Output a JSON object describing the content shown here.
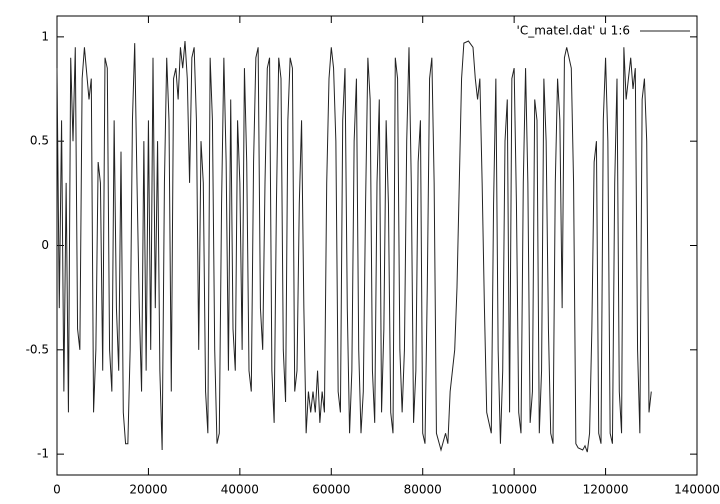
{
  "chart_data": {
    "type": "line",
    "x": [
      0,
      500,
      1000,
      1500,
      2000,
      2500,
      3000,
      3500,
      4000,
      4500,
      5000,
      5500,
      6000,
      7000,
      7500,
      8000,
      8500,
      9000,
      9500,
      10000,
      10500,
      11000,
      11500,
      12000,
      12500,
      13000,
      13500,
      14000,
      14500,
      15000,
      15500,
      16000,
      16500,
      17000,
      17500,
      18000,
      18500,
      19000,
      19500,
      20000,
      20500,
      21000,
      21500,
      22000,
      22500,
      23000,
      23500,
      24000,
      24500,
      25000,
      25500,
      26000,
      26500,
      27000,
      27500,
      28000,
      28500,
      29000,
      29500,
      30000,
      30500,
      31000,
      31500,
      32000,
      32500,
      33000,
      33500,
      34000,
      34500,
      35000,
      35500,
      36000,
      36500,
      37000,
      37500,
      38000,
      38500,
      39000,
      39500,
      40000,
      40500,
      41000,
      41500,
      42000,
      42500,
      43000,
      43500,
      44000,
      44500,
      45000,
      45500,
      46000,
      46500,
      47000,
      47500,
      48000,
      48500,
      49000,
      49500,
      50000,
      50500,
      51000,
      51500,
      52000,
      52500,
      53000,
      53500,
      54000,
      54500,
      55000,
      55500,
      56000,
      56500,
      57000,
      57500,
      58000,
      58500,
      59000,
      59500,
      60000,
      60500,
      61000,
      61500,
      62000,
      62500,
      63000,
      63500,
      64000,
      64500,
      65000,
      65500,
      66000,
      66500,
      67000,
      67500,
      68000,
      68500,
      69000,
      69500,
      70000,
      70500,
      71000,
      71500,
      72000,
      72500,
      73000,
      73500,
      74000,
      74500,
      75000,
      75500,
      76000,
      76500,
      77000,
      77500,
      78000,
      78500,
      79000,
      79500,
      80000,
      80500,
      81000,
      81500,
      82000,
      82500,
      83000,
      84000,
      85000,
      85500,
      86000,
      86500,
      87000,
      87500,
      88000,
      88500,
      89000,
      90000,
      91000,
      91500,
      92000,
      92500,
      93000,
      93500,
      94000,
      94500,
      95000,
      95500,
      96000,
      96500,
      97000,
      97500,
      98000,
      98500,
      99000,
      99500,
      100000,
      100500,
      101000,
      101500,
      102000,
      102500,
      103000,
      103500,
      104000,
      104500,
      105000,
      105500,
      106000,
      106500,
      107000,
      107500,
      108000,
      108500,
      109000,
      109500,
      110000,
      110500,
      111000,
      111500,
      112000,
      112500,
      113000,
      113500,
      114000,
      115000,
      115500,
      116000,
      116500,
      117000,
      117500,
      118000,
      118500,
      119000,
      119500,
      120000,
      120500,
      121000,
      121500,
      122000,
      122500,
      123000,
      123500,
      124000,
      124500,
      125000,
      125500,
      126000,
      126500,
      127000,
      127500,
      128000,
      128500,
      129000,
      129500,
      130000
    ],
    "series": [
      {
        "name": "'C_matel.dat' u 1:6",
        "color": "#222222",
        "values": [
          0.85,
          -0.3,
          0.6,
          -0.7,
          0.3,
          -0.8,
          0.9,
          0.5,
          0.95,
          -0.4,
          -0.5,
          0.8,
          0.95,
          0.7,
          0.8,
          -0.8,
          -0.5,
          0.4,
          0.3,
          -0.6,
          0.9,
          0.85,
          -0.5,
          -0.7,
          0.6,
          -0.3,
          -0.6,
          0.45,
          -0.8,
          -0.95,
          -0.95,
          -0.5,
          0.6,
          0.97,
          0.3,
          -0.3,
          -0.7,
          0.5,
          -0.6,
          0.6,
          -0.5,
          0.9,
          -0.3,
          0.5,
          -0.6,
          -0.98,
          0.3,
          0.9,
          0.6,
          -0.7,
          0.8,
          0.85,
          0.7,
          0.95,
          0.85,
          0.98,
          0.8,
          0.3,
          0.9,
          0.95,
          0.6,
          -0.5,
          0.5,
          0.3,
          -0.7,
          -0.9,
          0.9,
          0.6,
          -0.5,
          -0.95,
          -0.9,
          0.2,
          0.9,
          0.4,
          -0.6,
          0.7,
          -0.4,
          -0.6,
          0.6,
          0.3,
          -0.5,
          0.85,
          0.4,
          -0.6,
          -0.7,
          0.4,
          0.9,
          0.95,
          -0.3,
          -0.5,
          0.3,
          0.85,
          0.9,
          -0.6,
          -0.85,
          0.2,
          0.9,
          0.8,
          -0.5,
          -0.75,
          0.6,
          0.9,
          0.85,
          -0.7,
          -0.6,
          0.2,
          0.6,
          -0.3,
          -0.9,
          -0.7,
          -0.8,
          -0.7,
          -0.8,
          -0.6,
          -0.85,
          -0.7,
          -0.8,
          0.3,
          0.8,
          0.95,
          0.85,
          0.5,
          -0.7,
          -0.8,
          0.6,
          0.85,
          -0.3,
          -0.9,
          -0.6,
          0.5,
          0.8,
          -0.5,
          -0.9,
          -0.7,
          0.2,
          0.9,
          0.7,
          -0.6,
          -0.85,
          0.3,
          0.7,
          -0.8,
          -0.4,
          0.6,
          0.2,
          -0.8,
          -0.9,
          0.9,
          0.8,
          -0.5,
          -0.8,
          -0.5,
          0.5,
          0.95,
          0.3,
          -0.85,
          -0.6,
          0.4,
          0.6,
          -0.9,
          -0.95,
          -0.2,
          0.8,
          0.9,
          0.3,
          -0.9,
          -0.98,
          -0.9,
          -0.95,
          -0.7,
          -0.6,
          -0.5,
          -0.2,
          0.3,
          0.8,
          0.97,
          0.98,
          0.95,
          0.8,
          0.7,
          0.8,
          0.3,
          -0.3,
          -0.8,
          -0.85,
          -0.9,
          0.2,
          0.8,
          -0.5,
          -0.95,
          -0.6,
          0.5,
          0.7,
          -0.8,
          0.8,
          0.85,
          0.2,
          -0.8,
          -0.9,
          0.3,
          0.85,
          0.3,
          -0.85,
          -0.7,
          0.7,
          0.6,
          -0.9,
          -0.6,
          0.8,
          0.5,
          -0.4,
          -0.9,
          -0.95,
          0.3,
          0.8,
          0.6,
          -0.3,
          0.9,
          0.95,
          0.9,
          0.85,
          0.3,
          -0.95,
          -0.97,
          -0.98,
          -0.96,
          -0.99,
          -0.9,
          -0.4,
          0.4,
          0.5,
          -0.9,
          -0.95,
          0.6,
          0.9,
          0.5,
          -0.9,
          -0.95,
          0.3,
          0.8,
          -0.7,
          -0.9,
          0.95,
          0.7,
          0.8,
          0.9,
          0.75,
          0.85,
          -0.5,
          -0.9,
          0.7,
          0.8,
          0.5,
          -0.8,
          -0.7
        ]
      }
    ],
    "xlim": [
      0,
      140000
    ],
    "xticks": [
      0,
      20000,
      40000,
      60000,
      80000,
      100000,
      120000,
      140000
    ],
    "ylim": [
      -1.1,
      1.1
    ],
    "yticks": [
      -1,
      -0.5,
      0,
      0.5,
      1
    ],
    "legend": "top-right"
  }
}
